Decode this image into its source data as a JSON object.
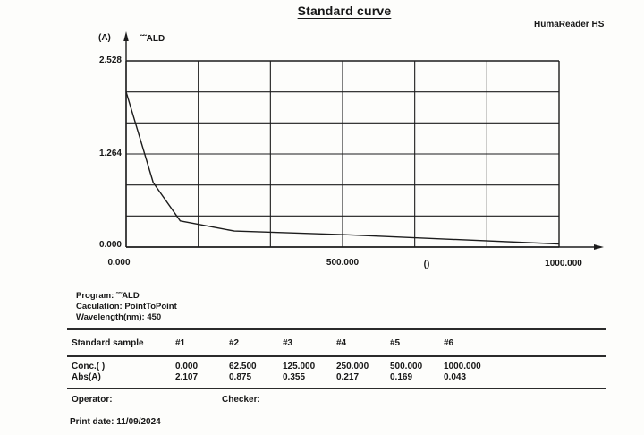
{
  "page": {
    "title": "Standard curve",
    "device": "HumaReader HS"
  },
  "chart": {
    "y_axis_unit": "(A)",
    "curve_label": "˜˜ALD",
    "y_ticks": [
      "2.528",
      "1.264",
      "0.000"
    ],
    "x_ticks": [
      "0.000",
      "500.000",
      "1000.000"
    ],
    "x_unit": "()"
  },
  "info": {
    "program": "Program: ˜˜ALD",
    "calculation": "Caculation: PointToPoint",
    "wavelength": "Wavelength(nm): 450"
  },
  "table": {
    "header": [
      "Standard sample",
      "#1",
      "#2",
      "#3",
      "#4",
      "#5",
      "#6"
    ],
    "rows": [
      {
        "label": "Conc.( )",
        "values": [
          "0.000",
          "62.500",
          "125.000",
          "250.000",
          "500.000",
          "1000.000"
        ]
      },
      {
        "label": "Abs(A)",
        "values": [
          "2.107",
          "0.875",
          "0.355",
          "0.217",
          "0.169",
          "0.043"
        ]
      }
    ]
  },
  "footer": {
    "operator_label": "Operator:",
    "checker_label": "Checker:",
    "print_date": "Print date: 11/09/2024"
  },
  "chart_data": {
    "type": "line",
    "title": "Standard curve",
    "series": [
      {
        "name": "˜˜ALD",
        "x": [
          0,
          62.5,
          125,
          250,
          500,
          1000
        ],
        "y": [
          2.107,
          0.875,
          0.355,
          0.217,
          0.169,
          0.043
        ]
      }
    ],
    "xlabel": "()",
    "ylabel": "(A)",
    "xlim": [
      0,
      1000
    ],
    "ylim": [
      0,
      2.528
    ],
    "x_divisions": 6,
    "y_divisions": 6,
    "grid": true,
    "legend_position": "top-left",
    "interpolation": "PointToPoint"
  }
}
